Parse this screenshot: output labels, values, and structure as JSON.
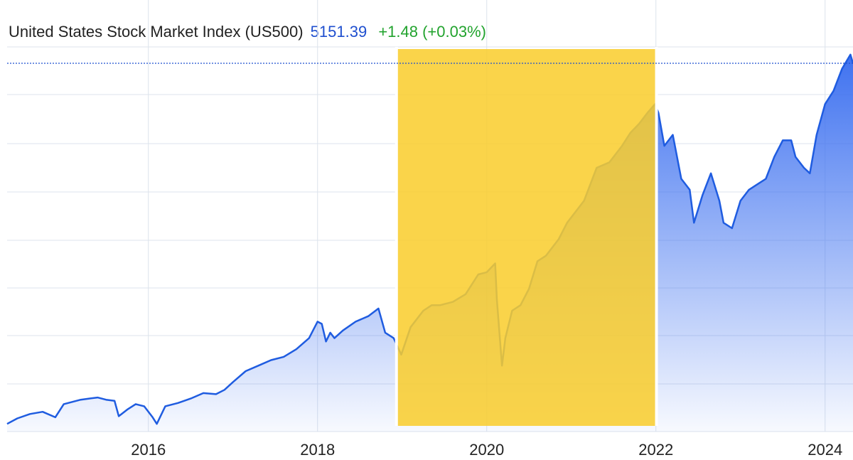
{
  "header": {
    "title": "United States Stock Market Index (US500)",
    "price": "5151.39",
    "change": "+1.48 (+0.03%)"
  },
  "colors": {
    "line": "#1f5ce0",
    "area_top": "#3f72f0",
    "highlight": "#f9cd2c",
    "gain": "#22a32e",
    "grid": "#dde3ec"
  },
  "chart_data": {
    "type": "area",
    "title": "United States Stock Market Index (US500)",
    "xlabel": "",
    "ylabel": "",
    "x_ticks": [
      "2016",
      "2018",
      "2020",
      "2022",
      "2024"
    ],
    "x_range": [
      2014.33,
      2024.33
    ],
    "ylim": [
      1800,
      5300
    ],
    "grid": true,
    "reference_line": 5151.39,
    "highlight_span": [
      2018.95,
      2021.99
    ],
    "series": [
      {
        "x": [
          2014.33,
          2014.45,
          2014.6,
          2014.75,
          2014.9,
          2015.0,
          2015.1,
          2015.2,
          2015.3,
          2015.4,
          2015.5,
          2015.6,
          2015.65,
          2015.75,
          2015.85,
          2015.95,
          2016.05,
          2016.1,
          2016.2,
          2016.35,
          2016.5,
          2016.65,
          2016.8,
          2016.9,
          2017.0,
          2017.15,
          2017.3,
          2017.45,
          2017.6,
          2017.75,
          2017.9,
          2018.0,
          2018.05,
          2018.1,
          2018.15,
          2018.2,
          2018.3,
          2018.45,
          2018.6,
          2018.72,
          2018.8,
          2018.9,
          2018.99,
          2019.1,
          2019.25,
          2019.35,
          2019.45,
          2019.6,
          2019.75,
          2019.9,
          2020.0,
          2020.1,
          2020.12,
          2020.18,
          2020.22,
          2020.3,
          2020.4,
          2020.5,
          2020.6,
          2020.7,
          2020.8,
          2020.85,
          2020.95,
          2021.05,
          2021.15,
          2021.3,
          2021.45,
          2021.6,
          2021.7,
          2021.8,
          2021.9,
          2021.99,
          2022.03,
          2022.1,
          2022.2,
          2022.3,
          2022.4,
          2022.45,
          2022.55,
          2022.65,
          2022.75,
          2022.8,
          2022.9,
          2023.0,
          2023.1,
          2023.2,
          2023.3,
          2023.4,
          2023.5,
          2023.6,
          2023.65,
          2023.75,
          2023.82,
          2023.9,
          2024.0,
          2024.1,
          2024.2,
          2024.3,
          2024.33
        ],
        "y": [
          1870,
          1920,
          1960,
          1980,
          1930,
          2050,
          2070,
          2090,
          2100,
          2110,
          2090,
          2080,
          1940,
          2000,
          2050,
          2030,
          1930,
          1870,
          2030,
          2060,
          2100,
          2150,
          2140,
          2180,
          2250,
          2350,
          2400,
          2450,
          2480,
          2550,
          2650,
          2800,
          2780,
          2620,
          2700,
          2650,
          2720,
          2800,
          2850,
          2920,
          2700,
          2650,
          2500,
          2750,
          2900,
          2950,
          2950,
          2980,
          3050,
          3230,
          3250,
          3330,
          3000,
          2400,
          2650,
          2900,
          2950,
          3100,
          3350,
          3400,
          3500,
          3550,
          3700,
          3800,
          3900,
          4200,
          4250,
          4400,
          4520,
          4600,
          4700,
          4780,
          4700,
          4400,
          4500,
          4100,
          4000,
          3700,
          3950,
          4150,
          3900,
          3700,
          3650,
          3900,
          4000,
          4050,
          4100,
          4300,
          4450,
          4450,
          4300,
          4200,
          4150,
          4500,
          4780,
          4900,
          5100,
          5230,
          5151
        ]
      }
    ]
  }
}
